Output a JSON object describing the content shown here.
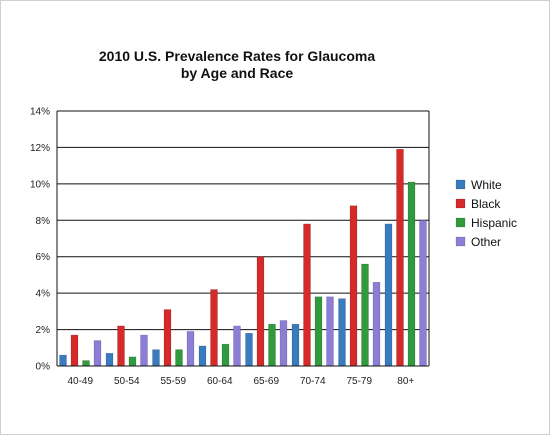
{
  "chart_data": {
    "type": "bar",
    "title_lines": [
      "2010 U.S. Prevalence Rates for Glaucoma",
      "by Age and Race"
    ],
    "xlabel": "",
    "ylabel": "",
    "categories": [
      "40-49",
      "50-54",
      "55-59",
      "60-64",
      "65-69",
      "70-74",
      "75-79",
      "80+"
    ],
    "ylim": [
      0,
      14
    ],
    "yticks": [
      0,
      2,
      4,
      6,
      8,
      10,
      12,
      14
    ],
    "ytick_labels": [
      "0%",
      "2%",
      "4%",
      "6%",
      "8%",
      "10%",
      "12%",
      "14%"
    ],
    "grid": "horizontal",
    "legend_position": "right",
    "series": [
      {
        "name": "White",
        "color": "#3a7bbf",
        "values": [
          0.6,
          0.7,
          0.9,
          1.1,
          1.8,
          2.3,
          3.7,
          7.8
        ]
      },
      {
        "name": "Black",
        "color": "#d62a2a",
        "values": [
          1.7,
          2.2,
          3.1,
          4.2,
          6.0,
          7.8,
          8.8,
          11.9
        ]
      },
      {
        "name": "Hispanic",
        "color": "#2f9b3c",
        "values": [
          0.3,
          0.5,
          0.9,
          1.2,
          2.3,
          3.8,
          5.6,
          10.1
        ]
      },
      {
        "name": "Other",
        "color": "#8c7ed6",
        "values": [
          1.4,
          1.7,
          1.9,
          2.2,
          2.5,
          3.8,
          4.6,
          8.0
        ]
      }
    ]
  }
}
